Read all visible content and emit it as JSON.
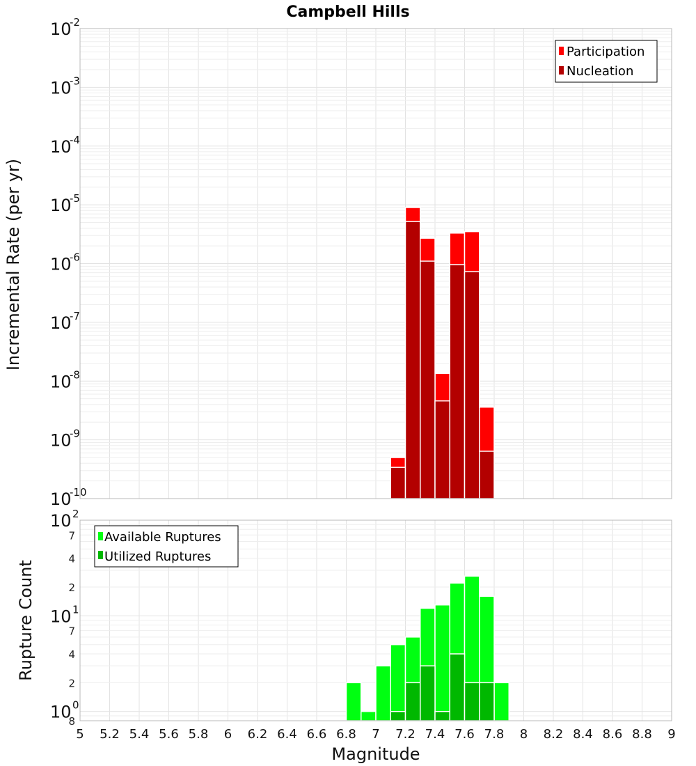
{
  "chart_data": [
    {
      "type": "bar",
      "title": "Campbell Hills",
      "xlabel": "",
      "ylabel": "Incremental Rate (per yr)",
      "yscale": "log",
      "ylim": [
        1e-10,
        0.01
      ],
      "y_tick_exponents": [
        "-10",
        "-9",
        "-8",
        "-7",
        "-6",
        "-5",
        "-4",
        "-3",
        "-2"
      ],
      "y_tick_base": "10",
      "xlim": [
        5,
        9
      ],
      "bin_width": 0.1,
      "legend_position": "top-right",
      "grid": true,
      "series": [
        {
          "name": "Participation",
          "color": "#ff0000",
          "x": [
            7.15,
            7.25,
            7.35,
            7.45,
            7.55,
            7.65,
            7.75
          ],
          "values": [
            5e-10,
            9e-06,
            2.7e-06,
            1.35e-08,
            3.3e-06,
            3.5e-06,
            3.6e-09
          ]
        },
        {
          "name": "Nucleation",
          "color": "#b30000",
          "x": [
            7.15,
            7.25,
            7.35,
            7.45,
            7.55,
            7.65,
            7.75
          ],
          "values": [
            3.4e-10,
            5.2e-06,
            1.1e-06,
            4.6e-09,
            9.6e-07,
            7.3e-07,
            6.4e-10
          ]
        }
      ]
    },
    {
      "type": "bar",
      "title": "",
      "xlabel": "Magnitude",
      "ylabel": "Rupture Count",
      "yscale": "log",
      "ylim": [
        0.8,
        100
      ],
      "y_major_base": "10",
      "y_major_ticks": [
        {
          "value": 1,
          "exp": "0"
        },
        {
          "value": 10,
          "exp": "1"
        },
        {
          "value": 100,
          "exp": "2"
        }
      ],
      "y_minor_ticks": [
        {
          "value": 0.8,
          "label": "8"
        },
        {
          "value": 2,
          "label": "2"
        },
        {
          "value": 4,
          "label": "4"
        },
        {
          "value": 7,
          "label": "7"
        },
        {
          "value": 20,
          "label": "2"
        },
        {
          "value": 40,
          "label": "4"
        },
        {
          "value": 70,
          "label": "7"
        }
      ],
      "xlim": [
        5,
        9
      ],
      "x_ticks": [
        "5",
        "5.2",
        "5.4",
        "5.6",
        "5.8",
        "6",
        "6.2",
        "6.4",
        "6.6",
        "6.8",
        "7",
        "7.2",
        "7.4",
        "7.6",
        "7.8",
        "8",
        "8.2",
        "8.4",
        "8.6",
        "8.8",
        "9"
      ],
      "bin_width": 0.1,
      "legend_position": "top-left",
      "grid": true,
      "series": [
        {
          "name": "Available Ruptures",
          "color": "#00ff11",
          "x": [
            6.85,
            6.95,
            7.05,
            7.15,
            7.25,
            7.35,
            7.45,
            7.55,
            7.65,
            7.75,
            7.85
          ],
          "values": [
            2,
            1,
            3,
            5,
            6,
            12,
            13,
            22,
            26,
            16,
            2
          ]
        },
        {
          "name": "Utilized Ruptures",
          "color": "#00b800",
          "x": [
            7.15,
            7.25,
            7.35,
            7.45,
            7.55,
            7.65,
            7.75
          ],
          "values": [
            1,
            2,
            3,
            1,
            4,
            2,
            2
          ]
        }
      ]
    }
  ]
}
